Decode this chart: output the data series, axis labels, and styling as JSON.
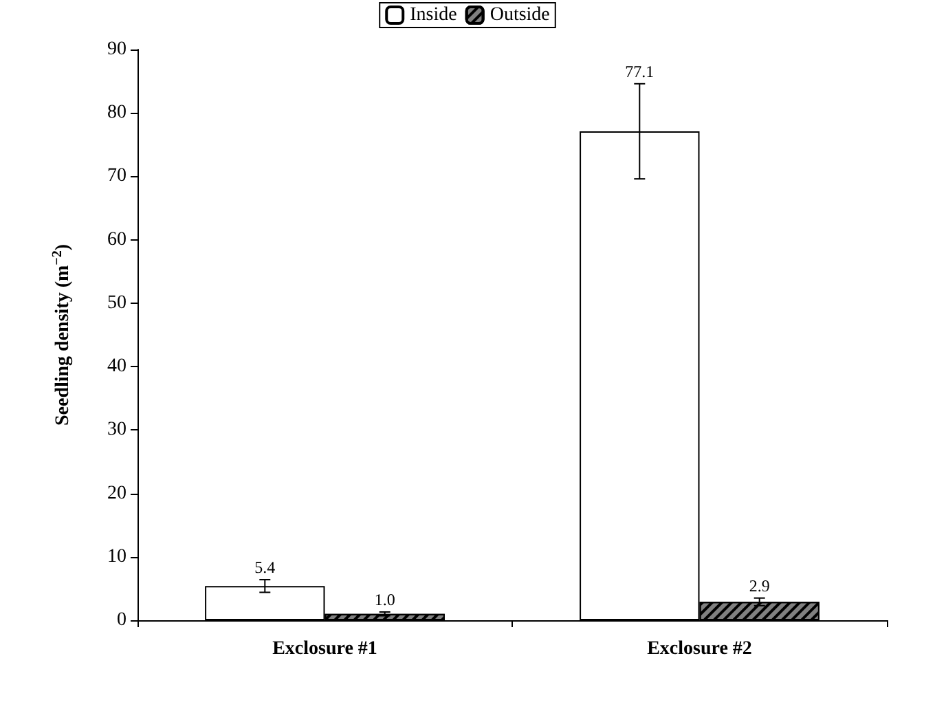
{
  "chart_data": {
    "type": "bar",
    "ylabel": "Seedling density (m$^{−2}$)",
    "categories": [
      "Exclosure #1",
      "Exclosure #2"
    ],
    "series": [
      {
        "name": "Inside",
        "color": "#ffffff",
        "values": [
          5.4,
          77.1
        ],
        "errors": [
          1.0,
          7.5
        ],
        "value_labels": [
          "5.4",
          "77.1"
        ]
      },
      {
        "name": "Outside",
        "color": "#808080",
        "values": [
          1.0,
          2.9
        ],
        "errors": [
          0.3,
          0.6
        ],
        "value_labels": [
          "1.0",
          "2.9"
        ]
      }
    ],
    "ylim": [
      0,
      90
    ],
    "yticks": [
      0,
      10,
      20,
      30,
      40,
      50,
      60,
      70,
      80,
      90
    ],
    "grid": false,
    "legend": "top"
  }
}
